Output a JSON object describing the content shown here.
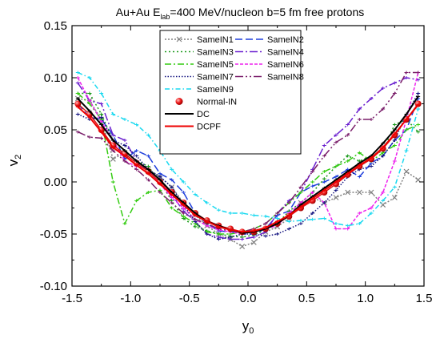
{
  "chart_data": {
    "type": "line",
    "title": "Au+Au  E_lab=400 MeV/nucleon  b=5 fm  free protons",
    "title_parts": {
      "system": "Au+Au",
      "e_main": "E",
      "e_sub": "lab",
      "energy": "=400 MeV/nucleon",
      "impact": "b=5 fm",
      "particles": "free protons"
    },
    "xlabel": "y",
    "xlabel_sub": "0",
    "ylabel": "v",
    "ylabel_sub": "2",
    "xlim": [
      -1.5,
      1.5
    ],
    "ylim": [
      -0.1,
      0.15
    ],
    "xticks": [
      "-1.5",
      "-1.0",
      "-0.5",
      "0.0",
      "0.5",
      "1.0",
      "1.5"
    ],
    "yticks": [
      "-0.10",
      "-0.05",
      "0.00",
      "0.05",
      "0.10",
      "0.15"
    ],
    "x": [
      -1.45,
      -1.35,
      -1.25,
      -1.15,
      -1.05,
      -0.95,
      -0.85,
      -0.75,
      -0.65,
      -0.55,
      -0.45,
      -0.35,
      -0.25,
      -0.15,
      -0.05,
      0.05,
      0.15,
      0.25,
      0.35,
      0.45,
      0.55,
      0.65,
      0.75,
      0.85,
      0.95,
      1.05,
      1.15,
      1.25,
      1.35,
      1.45
    ],
    "legend_placement": "top-center",
    "series": [
      {
        "name": "SameIN1",
        "color": "#808080",
        "dash": "2,2",
        "marker": "x",
        "values": [
          0.08,
          0.078,
          0.06,
          0.022,
          0.028,
          0.018,
          0.012,
          0.005,
          -0.005,
          -0.02,
          -0.032,
          -0.042,
          -0.05,
          -0.055,
          -0.062,
          -0.058,
          -0.048,
          -0.043,
          -0.035,
          -0.02,
          -0.015,
          -0.02,
          -0.015,
          -0.01,
          -0.01,
          -0.01,
          -0.022,
          -0.015,
          0.01,
          0.002
        ]
      },
      {
        "name": "SameIN2",
        "color": "#1f3fdc",
        "dash": "9,4",
        "marker": "none",
        "values": [
          0.075,
          0.062,
          0.06,
          0.045,
          0.022,
          0.03,
          0.025,
          0.008,
          0.002,
          -0.01,
          -0.03,
          -0.04,
          -0.047,
          -0.048,
          -0.05,
          -0.05,
          -0.045,
          -0.032,
          -0.028,
          -0.01,
          -0.004,
          0.0,
          0.005,
          0.012,
          0.005,
          0.018,
          0.025,
          0.04,
          0.05,
          0.08
        ]
      },
      {
        "name": "SameIN3",
        "color": "#1a9a1a",
        "dash": "2,3",
        "marker": "none",
        "values": [
          0.085,
          0.085,
          0.065,
          0.04,
          0.03,
          0.02,
          0.015,
          0.0,
          -0.018,
          -0.035,
          -0.043,
          -0.047,
          -0.05,
          -0.052,
          -0.053,
          -0.051,
          -0.046,
          -0.04,
          -0.028,
          -0.02,
          -0.01,
          0.003,
          0.015,
          0.025,
          0.02,
          0.025,
          0.03,
          0.055,
          0.06,
          0.048
        ]
      },
      {
        "name": "SameIN4",
        "color": "#6a1fcf",
        "dash": "10,3,2,3",
        "marker": "none",
        "values": [
          0.095,
          0.078,
          0.075,
          0.045,
          0.04,
          0.02,
          0.01,
          0.0,
          -0.012,
          -0.028,
          -0.038,
          -0.05,
          -0.053,
          -0.055,
          -0.055,
          -0.053,
          -0.048,
          -0.03,
          -0.018,
          -0.01,
          0.012,
          0.035,
          0.045,
          0.055,
          0.07,
          0.08,
          0.09,
          0.095,
          0.1,
          0.098
        ]
      },
      {
        "name": "SameIN5",
        "color": "#33cc11",
        "dash": "8,3,2,3",
        "marker": "none",
        "values": [
          0.085,
          0.075,
          0.06,
          0.0,
          -0.04,
          -0.018,
          -0.01,
          -0.008,
          -0.025,
          -0.033,
          -0.04,
          -0.048,
          -0.05,
          -0.05,
          -0.048,
          -0.045,
          -0.04,
          -0.03,
          -0.02,
          -0.01,
          0.0,
          0.01,
          0.015,
          0.02,
          0.028,
          0.02,
          0.028,
          0.035,
          0.05,
          0.055
        ]
      },
      {
        "name": "SameIN6",
        "color": "#ee22ee",
        "dash": "4,2",
        "marker": "none",
        "values": [
          0.1,
          0.078,
          0.058,
          0.04,
          0.02,
          0.015,
          0.012,
          -0.002,
          -0.015,
          -0.025,
          -0.036,
          -0.042,
          -0.046,
          -0.048,
          -0.05,
          -0.047,
          -0.045,
          -0.042,
          -0.03,
          -0.02,
          -0.01,
          -0.02,
          -0.045,
          -0.045,
          -0.03,
          -0.025,
          -0.01,
          0.02,
          0.06,
          0.105
        ]
      },
      {
        "name": "SameIN7",
        "color": "#141480",
        "dash": "1.5,2",
        "marker": "none",
        "values": [
          0.065,
          0.06,
          0.062,
          0.04,
          0.035,
          0.025,
          0.012,
          0.005,
          -0.005,
          -0.022,
          -0.038,
          -0.05,
          -0.055,
          -0.053,
          -0.05,
          -0.05,
          -0.052,
          -0.05,
          -0.045,
          -0.04,
          -0.03,
          -0.02,
          -0.008,
          0.005,
          0.012,
          0.015,
          0.025,
          0.04,
          0.065,
          0.085
        ]
      },
      {
        "name": "SameIN8",
        "color": "#7a1e6a",
        "dash": "10,3,2,3,2,3",
        "marker": "none",
        "values": [
          0.048,
          0.043,
          0.042,
          0.03,
          0.02,
          0.012,
          0.002,
          -0.01,
          -0.02,
          -0.03,
          -0.036,
          -0.04,
          -0.045,
          -0.047,
          -0.048,
          -0.045,
          -0.04,
          -0.03,
          -0.02,
          -0.005,
          0.01,
          0.025,
          0.038,
          0.045,
          0.06,
          0.06,
          0.07,
          0.085,
          0.105,
          0.105
        ]
      },
      {
        "name": "SameIN9",
        "color": "#19d9f0",
        "dash": "6,3,1.5,3",
        "marker": "none",
        "values": [
          0.105,
          0.1,
          0.085,
          0.065,
          0.06,
          0.055,
          0.045,
          0.03,
          0.012,
          0.0,
          -0.012,
          -0.02,
          -0.027,
          -0.03,
          -0.03,
          -0.032,
          -0.033,
          -0.035,
          -0.038,
          -0.037,
          -0.036,
          -0.035,
          -0.04,
          -0.042,
          -0.04,
          -0.03,
          -0.018,
          -0.005,
          0.03,
          0.07
        ]
      },
      {
        "name": "Normal-IN",
        "color": "#dd1111",
        "dash": "",
        "marker": "ball",
        "values": [
          0.075,
          0.065,
          0.05,
          0.035,
          0.027,
          0.018,
          0.01,
          0.0,
          -0.01,
          -0.02,
          -0.03,
          -0.037,
          -0.042,
          -0.045,
          -0.048,
          -0.048,
          -0.045,
          -0.04,
          -0.033,
          -0.025,
          -0.018,
          -0.01,
          -0.002,
          0.007,
          0.015,
          0.022,
          0.032,
          0.045,
          0.06,
          0.075
        ]
      },
      {
        "name": "DC",
        "color": "#000000",
        "dash": "",
        "marker": "none",
        "values": [
          0.08,
          0.068,
          0.055,
          0.04,
          0.03,
          0.02,
          0.012,
          0.002,
          -0.01,
          -0.02,
          -0.03,
          -0.038,
          -0.042,
          -0.046,
          -0.049,
          -0.048,
          -0.045,
          -0.04,
          -0.032,
          -0.022,
          -0.014,
          -0.006,
          0.002,
          0.01,
          0.018,
          0.025,
          0.037,
          0.05,
          0.065,
          0.082
        ]
      },
      {
        "name": "DCPF",
        "color": "#ee0000",
        "dash": "",
        "marker": "none",
        "values": [
          0.072,
          0.062,
          0.048,
          0.033,
          0.025,
          0.016,
          0.008,
          -0.002,
          -0.012,
          -0.022,
          -0.032,
          -0.038,
          -0.043,
          -0.046,
          -0.048,
          -0.047,
          -0.044,
          -0.038,
          -0.032,
          -0.024,
          -0.016,
          -0.008,
          0.0,
          0.008,
          0.016,
          0.023,
          0.033,
          0.046,
          0.06,
          0.074
        ]
      }
    ]
  }
}
